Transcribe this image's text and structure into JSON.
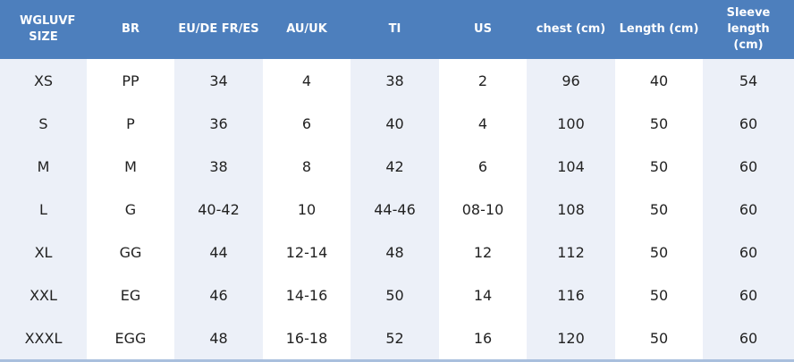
{
  "headers": [
    "WGLUVF SIZE",
    "BR",
    "EU/DE FR/ES",
    "AU/UK",
    "TI",
    "US",
    "chest (cm)",
    "Length (cm)",
    "Sleeve length (cm)"
  ],
  "rows": [
    [
      "XS",
      "PP",
      "34",
      "4",
      "38",
      "2",
      "96",
      "40",
      "54"
    ],
    [
      "S",
      "P",
      "36",
      "6",
      "40",
      "4",
      "100",
      "50",
      "60"
    ],
    [
      "M",
      "M",
      "38",
      "8",
      "42",
      "6",
      "104",
      "50",
      "60"
    ],
    [
      "L",
      "G",
      "40-42",
      "10",
      "44-46",
      "08-10",
      "108",
      "50",
      "60"
    ],
    [
      "XL",
      "GG",
      "44",
      "12-14",
      "48",
      "12",
      "112",
      "50",
      "60"
    ],
    [
      "XXL",
      "EG",
      "46",
      "14-16",
      "50",
      "14",
      "116",
      "50",
      "60"
    ],
    [
      "XXXL",
      "EGG",
      "48",
      "16-18",
      "52",
      "16",
      "120",
      "50",
      "60"
    ]
  ],
  "colors": {
    "header_bg": "#4d7fbd",
    "alt_column_bg": "#ecf0f8",
    "text": "#222222"
  }
}
